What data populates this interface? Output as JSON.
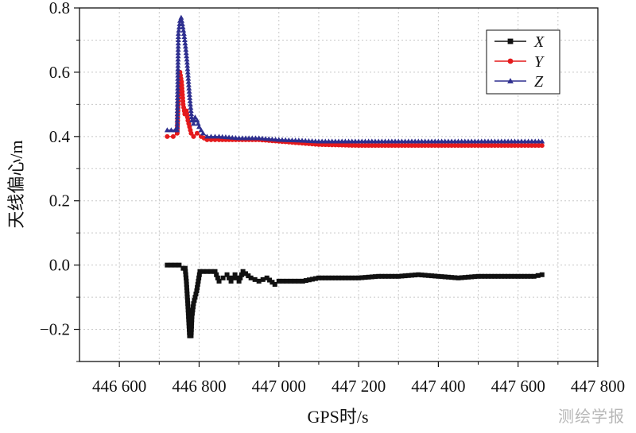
{
  "chart_data": {
    "type": "line",
    "xlabel": "GPS时/s",
    "ylabel": "天线偏心/m",
    "xlim": [
      446500,
      447800
    ],
    "ylim": [
      -0.3,
      0.8
    ],
    "x_tick_labels": [
      "446 600",
      "446 800",
      "447 000",
      "447 200",
      "447 400",
      "447 600",
      "447 800"
    ],
    "x_ticks": [
      446600,
      446800,
      447000,
      447200,
      447400,
      447600,
      447800
    ],
    "y_ticks": [
      -0.2,
      0.0,
      0.2,
      0.4,
      0.6,
      0.8
    ],
    "y_tick_labels": [
      "−0.2",
      "0.0",
      "0.2",
      "0.4",
      "0.6",
      "0.8"
    ],
    "grid": true,
    "legend_position": "top-right",
    "series": [
      {
        "name": "X",
        "color": "#111111",
        "marker": "square",
        "points": [
          [
            446720,
            0.0
          ],
          [
            446740,
            0.0
          ],
          [
            446750,
            0.0
          ],
          [
            446760,
            -0.01
          ],
          [
            446765,
            -0.01
          ],
          [
            446768,
            -0.05
          ],
          [
            446772,
            -0.13
          ],
          [
            446776,
            -0.22
          ],
          [
            446780,
            -0.22
          ],
          [
            446782,
            -0.16
          ],
          [
            446786,
            -0.12
          ],
          [
            446790,
            -0.1
          ],
          [
            446794,
            -0.08
          ],
          [
            446798,
            -0.05
          ],
          [
            446802,
            -0.02
          ],
          [
            446810,
            -0.02
          ],
          [
            446820,
            -0.02
          ],
          [
            446840,
            -0.02
          ],
          [
            446850,
            -0.05
          ],
          [
            446860,
            -0.04
          ],
          [
            446870,
            -0.03
          ],
          [
            446880,
            -0.05
          ],
          [
            446890,
            -0.03
          ],
          [
            446900,
            -0.05
          ],
          [
            446910,
            -0.02
          ],
          [
            446930,
            -0.04
          ],
          [
            446950,
            -0.05
          ],
          [
            446970,
            -0.04
          ],
          [
            446990,
            -0.06
          ],
          [
            447000,
            -0.05
          ],
          [
            447030,
            -0.05
          ],
          [
            447060,
            -0.05
          ],
          [
            447100,
            -0.04
          ],
          [
            447150,
            -0.04
          ],
          [
            447200,
            -0.04
          ],
          [
            447250,
            -0.035
          ],
          [
            447300,
            -0.035
          ],
          [
            447350,
            -0.03
          ],
          [
            447400,
            -0.035
          ],
          [
            447450,
            -0.04
          ],
          [
            447500,
            -0.035
          ],
          [
            447550,
            -0.035
          ],
          [
            447600,
            -0.035
          ],
          [
            447640,
            -0.035
          ],
          [
            447660,
            -0.03
          ]
        ]
      },
      {
        "name": "Y",
        "color": "#e41a1c",
        "marker": "circle",
        "points": [
          [
            446720,
            0.4
          ],
          [
            446735,
            0.4
          ],
          [
            446745,
            0.41
          ],
          [
            446748,
            0.52
          ],
          [
            446752,
            0.6
          ],
          [
            446756,
            0.57
          ],
          [
            446760,
            0.5
          ],
          [
            446764,
            0.47
          ],
          [
            446768,
            0.48
          ],
          [
            446772,
            0.45
          ],
          [
            446776,
            0.43
          ],
          [
            446780,
            0.41
          ],
          [
            446786,
            0.4
          ],
          [
            446795,
            0.41
          ],
          [
            446805,
            0.4
          ],
          [
            446820,
            0.39
          ],
          [
            446850,
            0.39
          ],
          [
            446900,
            0.39
          ],
          [
            446950,
            0.39
          ],
          [
            447000,
            0.385
          ],
          [
            447050,
            0.38
          ],
          [
            447100,
            0.375
          ],
          [
            447200,
            0.372
          ],
          [
            447300,
            0.372
          ],
          [
            447400,
            0.372
          ],
          [
            447500,
            0.372
          ],
          [
            447600,
            0.372
          ],
          [
            447660,
            0.372
          ]
        ]
      },
      {
        "name": "Z",
        "color": "#2e2f8f",
        "marker": "triangle",
        "points": [
          [
            446720,
            0.42
          ],
          [
            446740,
            0.42
          ],
          [
            446745,
            0.42
          ],
          [
            446748,
            0.72
          ],
          [
            446752,
            0.76
          ],
          [
            446755,
            0.77
          ],
          [
            446758,
            0.75
          ],
          [
            446762,
            0.72
          ],
          [
            446766,
            0.68
          ],
          [
            446770,
            0.63
          ],
          [
            446774,
            0.56
          ],
          [
            446778,
            0.5
          ],
          [
            446782,
            0.45
          ],
          [
            446786,
            0.44
          ],
          [
            446790,
            0.46
          ],
          [
            446795,
            0.45
          ],
          [
            446800,
            0.43
          ],
          [
            446810,
            0.41
          ],
          [
            446820,
            0.4
          ],
          [
            446850,
            0.4
          ],
          [
            446900,
            0.395
          ],
          [
            446950,
            0.395
          ],
          [
            447000,
            0.39
          ],
          [
            447050,
            0.388
          ],
          [
            447100,
            0.385
          ],
          [
            447200,
            0.385
          ],
          [
            447300,
            0.385
          ],
          [
            447400,
            0.385
          ],
          [
            447500,
            0.385
          ],
          [
            447600,
            0.385
          ],
          [
            447660,
            0.385
          ]
        ]
      }
    ]
  },
  "watermark": "测绘学报"
}
